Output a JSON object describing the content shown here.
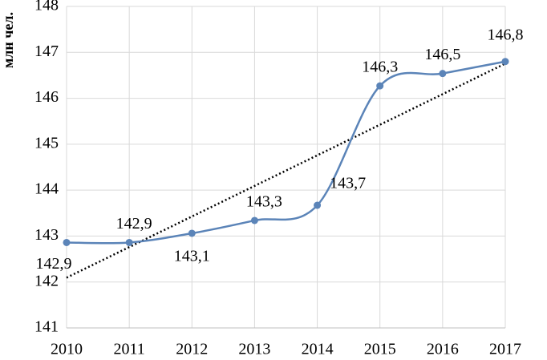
{
  "chart_data": {
    "type": "line",
    "y_label": "млн чел.",
    "categories": [
      "2010",
      "2011",
      "2012",
      "2013",
      "2014",
      "2015",
      "2016",
      "2017"
    ],
    "series": [
      {
        "color": "#5b84b8",
        "values": [
          142.86,
          142.86,
          143.06,
          143.34,
          143.67,
          146.27,
          146.54,
          146.8
        ],
        "value_labels": [
          "142,9",
          "142,9",
          "143,1",
          "143,3",
          "143,7",
          "146,3",
          "146,5",
          "146,8"
        ]
      }
    ],
    "ylim": [
      141,
      148
    ],
    "yticks": [
      141,
      142,
      143,
      144,
      145,
      146,
      147,
      148
    ],
    "grid": true,
    "smooth": true,
    "markers": true,
    "trendline": true
  }
}
